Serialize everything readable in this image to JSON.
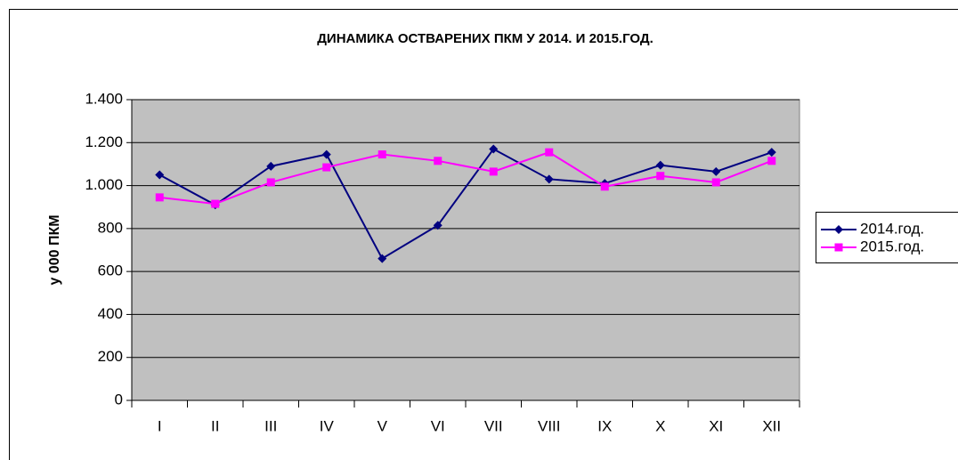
{
  "chart_data": {
    "type": "line",
    "title": "ДИНАМИКА ОСТВАРЕНИХ ПКМ У 2014. И 2015.ГОД.",
    "y_label": "у 000 ПКМ",
    "categories": [
      "I",
      "II",
      "III",
      "IV",
      "V",
      "VI",
      "VII",
      "VIII",
      "IX",
      "X",
      "XI",
      "XII"
    ],
    "series": [
      {
        "name": "2014.год.",
        "color": "#000080",
        "marker": "diamond",
        "values": [
          1050,
          910,
          1090,
          1145,
          660,
          815,
          1170,
          1030,
          1010,
          1095,
          1065,
          1155
        ]
      },
      {
        "name": "2015.год.",
        "color": "#ff00ff",
        "marker": "square",
        "values": [
          945,
          915,
          1015,
          1085,
          1145,
          1115,
          1065,
          1155,
          995,
          1045,
          1015,
          1115
        ]
      }
    ],
    "ylim": [
      0,
      1400
    ],
    "yticks": [
      0,
      200,
      400,
      600,
      800,
      {
        "value": 1000,
        "label": "1.000"
      },
      {
        "value": 1200,
        "label": "1.200"
      },
      {
        "value": 1400,
        "label": "1.400"
      }
    ],
    "grid": true,
    "legend": "right"
  }
}
